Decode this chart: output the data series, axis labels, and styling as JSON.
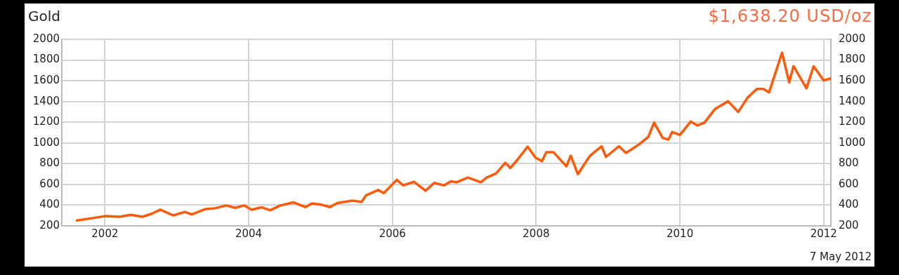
{
  "chart_data": {
    "type": "line",
    "title": "Gold",
    "subtitle": "$1,638.20 USD/oz",
    "annotations": [
      "7 May 2012"
    ],
    "x": [
      2001.61,
      2001.8,
      2002.0,
      2002.2,
      2002.36,
      2002.52,
      2002.65,
      2002.77,
      2002.95,
      2003.11,
      2003.21,
      2003.4,
      2003.53,
      2003.69,
      2003.81,
      2003.94,
      2004.04,
      2004.18,
      2004.3,
      2004.44,
      2004.62,
      2004.79,
      2004.88,
      2005.0,
      2005.13,
      2005.23,
      2005.44,
      2005.57,
      2005.63,
      2005.8,
      2005.88,
      2006.06,
      2006.15,
      2006.3,
      2006.46,
      2006.58,
      2006.72,
      2006.81,
      2006.89,
      2007.05,
      2007.23,
      2007.31,
      2007.44,
      2007.57,
      2007.64,
      2007.73,
      2007.88,
      2007.99,
      2008.08,
      2008.14,
      2008.24,
      2008.42,
      2008.48,
      2008.58,
      2008.7,
      2008.75,
      2008.91,
      2008.97,
      2009.15,
      2009.25,
      2009.43,
      2009.56,
      2009.64,
      2009.76,
      2009.84,
      2009.89,
      2010.0,
      2010.15,
      2010.24,
      2010.34,
      2010.49,
      2010.67,
      2010.81,
      2010.94,
      2011.07,
      2011.16,
      2011.24,
      2011.42,
      2011.52,
      2011.58,
      2011.76,
      2011.86,
      2012.0,
      2012.1
    ],
    "series": [
      {
        "color": "#ff5a0a",
        "values": [
          253,
          272,
          294,
          288,
          306,
          288,
          317,
          356,
          301,
          335,
          310,
          363,
          370,
          397,
          374,
          397,
          356,
          379,
          351,
          397,
          427,
          381,
          416,
          407,
          381,
          420,
          443,
          431,
          493,
          546,
          516,
          644,
          591,
          625,
          539,
          614,
          591,
          630,
          621,
          666,
          621,
          666,
          705,
          808,
          758,
          831,
          964,
          858,
          824,
          911,
          911,
          774,
          877,
          699,
          827,
          877,
          968,
          865,
          968,
          904,
          986,
          1059,
          1196,
          1048,
          1032,
          1105,
          1077,
          1207,
          1169,
          1196,
          1329,
          1402,
          1299,
          1436,
          1521,
          1521,
          1488,
          1870,
          1584,
          1740,
          1527,
          1740,
          1603,
          1623
        ]
      }
    ],
    "xlim": [
      2001.4,
      2012.1
    ],
    "xticks": [
      2002,
      2004,
      2006,
      2008,
      2010,
      2012
    ],
    "ylim": [
      200,
      2000
    ],
    "yticks": [
      200,
      400,
      600,
      800,
      1000,
      1200,
      1400,
      1600,
      1800,
      2000
    ],
    "y2lim": [
      200,
      2000
    ],
    "y2ticks": [
      200,
      400,
      600,
      800,
      1000,
      1200,
      1400,
      1600,
      1800,
      2000
    ],
    "grid": true,
    "legend": false,
    "marker": "none",
    "line_style": "solid"
  }
}
